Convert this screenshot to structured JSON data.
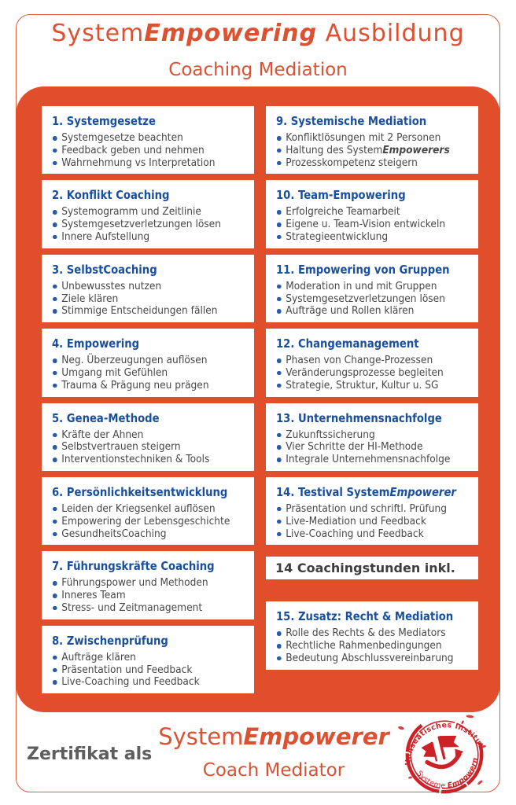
{
  "header": {
    "title_parts": [
      {
        "text": "System"
      },
      {
        "text": "Empowering",
        "style": "bold-italic"
      },
      {
        "text": " Ausbildung"
      }
    ],
    "subtitle": "Coaching Mediation"
  },
  "program": {
    "columns": [
      {
        "items": [
          {
            "type": "card",
            "heading": "1. Systemgesetze",
            "bullets": [
              "Systemgesetze beachten",
              "Feedback geben und nehmen",
              "Wahrnehmung vs Interpretation"
            ]
          },
          {
            "type": "card",
            "heading": "2. Konflikt Coaching",
            "bullets": [
              "Systemogramm und Zeitlinie",
              "Systemgesetzverletzungen lösen",
              "Innere Aufstellung"
            ]
          },
          {
            "type": "card",
            "heading": "3. SelbstCoaching",
            "bullets": [
              "Unbewusstes nutzen",
              "Ziele klären",
              "Stimmige Entscheidungen fällen"
            ]
          },
          {
            "type": "card",
            "heading": "4. Empowering",
            "bullets": [
              "Neg. Überzeugungen auflösen",
              "Umgang mit Gefühlen",
              "Trauma & Prägung neu prägen"
            ]
          },
          {
            "type": "card",
            "heading": "5. Genea-Methode",
            "bullets": [
              "Kräfte der Ahnen",
              "Selbstvertrauen steigern",
              "Interventionstechniken & Tools"
            ]
          },
          {
            "type": "card",
            "heading": "6. Persönlichkeitsentwicklung",
            "bullets": [
              "Leiden der Kriegsenkel auflösen",
              "Empowering der Lebensgeschichte",
              "GesundheitsCoaching"
            ]
          },
          {
            "type": "card",
            "heading": "7. Führungskräfte Coaching",
            "bullets": [
              "Führungspower und Methoden",
              "Inneres Team",
              "Stress- und Zeitmanagement"
            ]
          },
          {
            "type": "card",
            "heading": "8. Zwischenprüfung",
            "bullets": [
              "Aufträge klären",
              "Präsentation und Feedback",
              "Live-Coaching und Feedback"
            ]
          }
        ]
      },
      {
        "items": [
          {
            "type": "card",
            "heading": "9. Systemische Mediation",
            "bullets": [
              "Konfliktlösungen mit 2 Personen",
              [
                {
                  "text": "Haltung des System"
                },
                {
                  "text": "Empowerers",
                  "style": "bold-italic"
                }
              ],
              "Prozesskompetenz steigern"
            ]
          },
          {
            "type": "card",
            "heading": "10. Team-Empowering",
            "bullets": [
              "Erfolgreiche Teamarbeit",
              "Eigene u. Team-Vision entwickeln",
              "Strategieentwicklung"
            ]
          },
          {
            "type": "card",
            "heading": "11. Empowering von Gruppen",
            "bullets": [
              "Moderation in und mit Gruppen",
              "Systemgesetzverletzungen lösen",
              "Aufträge und Rollen klären"
            ]
          },
          {
            "type": "card",
            "heading": "12. Changemanagement",
            "bullets": [
              "Phasen von Change-Prozessen",
              "Veränderungsprozesse begleiten",
              "Strategie, Struktur, Kultur u. SG"
            ]
          },
          {
            "type": "card",
            "heading": "13. Unternehmensnachfolge",
            "bullets": [
              "Zukunftssicherung",
              "Vier Schritte der HI-Methode",
              "Integrale Unternehmensnachfolge"
            ]
          },
          {
            "type": "card",
            "heading": [
              {
                "text": "14. Testival System"
              },
              {
                "text": "Empowerer",
                "style": "bold-italic"
              }
            ],
            "bullets": [
              "Präsentation und schriftl. Prüfung",
              "Live-Mediation und Feedback",
              "Live-Coaching und Feedback"
            ]
          },
          {
            "type": "note",
            "text": "14 Coachingstunden inkl."
          },
          {
            "type": "card",
            "heading": "15. Zusatz: Recht & Mediation",
            "bullets": [
              "Rolle des Rechts & des Mediators",
              "Rechtliche Rahmenbedingungen",
              "Bedeutung Abschlussvereinbarung"
            ]
          }
        ]
      }
    ]
  },
  "footer": {
    "label": "Zertifikat als",
    "cert_title_parts": [
      {
        "text": "System"
      },
      {
        "text": "Empowerer",
        "style": "bold-italic"
      }
    ],
    "cert_subtitle": "Coach Mediator",
    "stamp": {
      "top_text": "Hanseatisches Institut",
      "bottom_parts": [
        {
          "text": "Systeme "
        },
        {
          "text": "Empowern",
          "style": "bold-italic"
        }
      ]
    }
  },
  "colors": {
    "panel_orange": "#E04E2B",
    "accent_red": "#DB5233",
    "heading_blue": "#1A4F9C",
    "body_text": "#47474A",
    "stamp_red": "#CE2127",
    "label_gray": "#5E5E60"
  }
}
